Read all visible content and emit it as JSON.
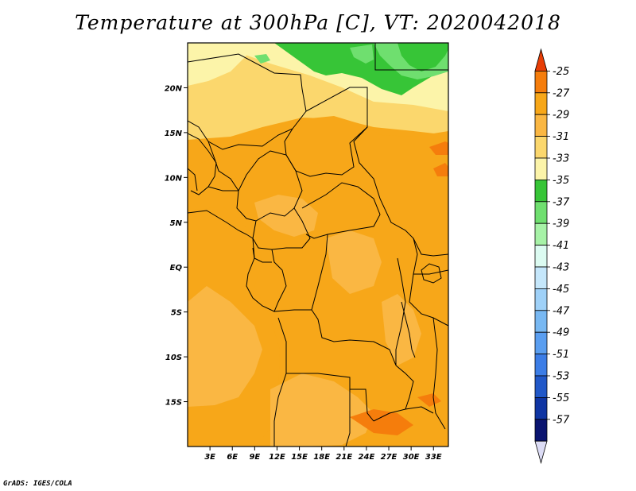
{
  "title": "Temperature at 300hPa [C], VT: 2020042018",
  "credit": "GrADS: IGES/COLA",
  "map": {
    "lon_range": [
      0,
      35
    ],
    "lat_range": [
      -20,
      25
    ],
    "y_ticks": [
      "20N",
      "15N",
      "10N",
      "5N",
      "EQ",
      "5S",
      "10S",
      "15S"
    ],
    "y_tick_lats": [
      20,
      15,
      10,
      5,
      0,
      -5,
      -10,
      -15
    ],
    "x_ticks": [
      "3E",
      "6E",
      "9E",
      "12E",
      "15E",
      "18E",
      "21E",
      "24E",
      "27E",
      "30E",
      "33E"
    ],
    "x_tick_lons": [
      3,
      6,
      9,
      12,
      15,
      18,
      21,
      24,
      27,
      30,
      33
    ]
  },
  "colorbar": {
    "labels": [
      "-25",
      "-27",
      "-29",
      "-31",
      "-33",
      "-35",
      "-37",
      "-39",
      "-41",
      "-43",
      "-45",
      "-47",
      "-49",
      "-51",
      "-53",
      "-55",
      "-57"
    ],
    "colors": [
      "#e73d06",
      "#f57d0c",
      "#f7a719",
      "#fab743",
      "#fbd76d",
      "#fcf4a9",
      "#37c537",
      "#6fdf6f",
      "#a7f2a7",
      "#dcfbf1",
      "#c5e7fb",
      "#9fd1f8",
      "#78b8f2",
      "#5a9ef0",
      "#3c7de6",
      "#2158c8",
      "#0f35a3",
      "#0a1470",
      "#dcdcf5"
    ]
  },
  "fields": {
    "colors": {
      "c27": "#f57d0c",
      "c29": "#f7a719",
      "c31": "#fab743",
      "c33": "#fbd76d",
      "c35": "#fcf4a9",
      "c37": "#37c537",
      "c39": "#6fdf6f"
    }
  }
}
